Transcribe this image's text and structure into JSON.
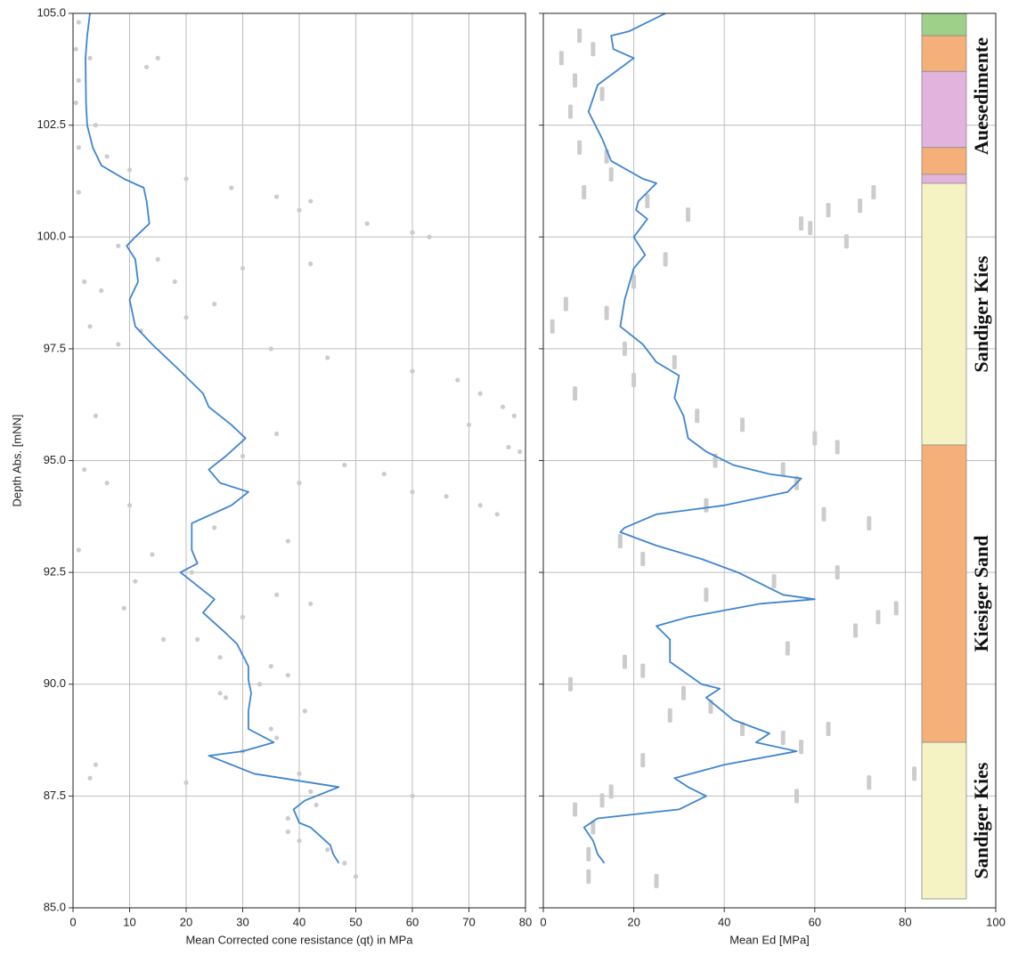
{
  "chart_data": [
    {
      "type": "line",
      "xlabel": "Mean Corrected cone resistance (qt) in MPa",
      "ylabel": "Depth Abs. [mNN]",
      "xlim": [
        0,
        80
      ],
      "xticks": [
        0,
        10,
        20,
        30,
        40,
        50,
        60,
        70,
        80
      ],
      "ylim": [
        85,
        105
      ],
      "yticks": [
        {
          "value": 85,
          "label": "85.0"
        },
        {
          "value": 87.5,
          "label": "87.5"
        },
        {
          "value": 90,
          "label": "90.0"
        },
        {
          "value": 92.5,
          "label": "92.5"
        },
        {
          "value": 95,
          "label": "95.0"
        },
        {
          "value": 97.5,
          "label": "97.5"
        },
        {
          "value": 100,
          "label": "100.0"
        },
        {
          "value": 102.5,
          "label": "102.5"
        },
        {
          "value": 105,
          "label": "105.0"
        }
      ],
      "grid": true,
      "series": [
        {
          "type": "scatter",
          "color": "#cccccc",
          "depth": [
            104.8,
            104.2,
            104.0,
            103.8,
            104.0,
            103.5,
            103.0,
            102.5,
            102.0,
            101.8,
            101.5,
            101.3,
            101.1,
            100.9,
            100.8,
            100.6,
            100.3,
            100.1,
            100.0,
            99.8,
            99.5,
            99.4,
            99.3,
            99.0,
            98.8,
            98.5,
            98.2,
            97.9,
            97.6,
            97.5,
            97.3,
            97.0,
            96.8,
            96.5,
            96.2,
            96.0,
            95.8,
            95.3,
            95.2,
            95.6,
            95.1,
            94.9,
            94.7,
            94.5,
            94.3,
            94.2,
            94.0,
            93.8,
            94.5,
            94.0,
            93.5,
            93.2,
            92.9,
            92.5,
            92.3,
            92.0,
            91.8,
            91.7,
            91.5,
            91.0,
            90.6,
            90.4,
            90.2,
            90.0,
            89.7,
            89.4,
            89.0,
            88.8,
            88.5,
            88.2,
            88.0,
            87.9,
            87.8,
            87.6,
            87.5,
            87.3,
            87.0,
            86.7,
            86.5,
            86.3,
            86.0,
            85.7,
            98.0,
            96.0,
            94.8,
            93.0,
            91.0,
            89.8,
            99.0,
            101.0
          ],
          "values": [
            1,
            0.5,
            3,
            13,
            15,
            1,
            0.5,
            4,
            1,
            6,
            10,
            20,
            28,
            36,
            42,
            40,
            52,
            60,
            63,
            8,
            15,
            42,
            30,
            18,
            5,
            25,
            20,
            12,
            8,
            35,
            45,
            60,
            68,
            72,
            76,
            78,
            70,
            77,
            79,
            36,
            30,
            48,
            55,
            40,
            60,
            66,
            72,
            75,
            6,
            10,
            25,
            38,
            14,
            21,
            11,
            36,
            42,
            9,
            30,
            22,
            26,
            35,
            38,
            33,
            27,
            41,
            35,
            36,
            30,
            4,
            40,
            3,
            20,
            42,
            60,
            43,
            38,
            38,
            40,
            45,
            48,
            50,
            3,
            4,
            2,
            1,
            16,
            26,
            2,
            1
          ]
        },
        {
          "type": "line",
          "color": "#3f85d0",
          "depth": [
            105.0,
            104.5,
            104.0,
            103.0,
            102.5,
            102.0,
            101.6,
            101.3,
            101.1,
            100.8,
            100.3,
            100.0,
            99.8,
            99.5,
            99.0,
            98.6,
            98.0,
            97.6,
            97.0,
            96.5,
            96.2,
            95.8,
            95.5,
            95.1,
            94.8,
            94.5,
            94.3,
            94.0,
            93.6,
            93.0,
            92.7,
            92.5,
            92.1,
            91.9,
            91.6,
            91.2,
            90.9,
            90.4,
            90.1,
            89.8,
            89.4,
            89.0,
            88.7,
            88.5,
            88.4,
            88.0,
            87.7,
            87.4,
            87.2,
            86.9,
            86.8,
            86.4,
            86.2,
            86.0
          ],
          "values": [
            3,
            2.5,
            2.2,
            2.3,
            2.5,
            3.5,
            5,
            9,
            12.5,
            13,
            13.5,
            11,
            9.5,
            11,
            11.5,
            10,
            11,
            14,
            19,
            23,
            24,
            28,
            30.5,
            27,
            24,
            26,
            31,
            28,
            21,
            21,
            22,
            19,
            23,
            25,
            23,
            26.5,
            29,
            31,
            31,
            31.5,
            31,
            31,
            35.5,
            30,
            24,
            32,
            47,
            41,
            39,
            40,
            42,
            45.5,
            46,
            47
          ]
        }
      ]
    },
    {
      "type": "line",
      "xlabel": "Mean Ed [MPa]",
      "xlim": [
        0,
        100
      ],
      "xticks": [
        0,
        20,
        40,
        60,
        80,
        100
      ],
      "ylim": [
        85,
        105
      ],
      "yticks": [
        85,
        87.5,
        90,
        92.5,
        95,
        97.5,
        100,
        102.5,
        105
      ],
      "grid": true,
      "series": [
        {
          "type": "dash",
          "color": "#cccccc",
          "depth": [
            104.0,
            103.5,
            104.5,
            104.2,
            103.2,
            102.8,
            102.0,
            101.8,
            101.4,
            101.0,
            100.8,
            100.5,
            100.3,
            100.6,
            100.7,
            101.0,
            100.2,
            99.9,
            99.5,
            99.0,
            98.5,
            98.0,
            98.3,
            97.5,
            97.2,
            96.8,
            96.5,
            96.0,
            95.8,
            95.5,
            95.3,
            95.0,
            94.8,
            94.5,
            94.0,
            93.8,
            93.6,
            93.2,
            92.8,
            92.5,
            92.3,
            92.0,
            91.7,
            91.5,
            91.2,
            90.8,
            90.5,
            90.3,
            90.0,
            89.8,
            89.5,
            89.3,
            89.0,
            88.8,
            88.6,
            88.3,
            88.0,
            87.8,
            87.6,
            87.4,
            87.2,
            86.8,
            86.2,
            85.7,
            85.6,
            87.5,
            89.0
          ],
          "values": [
            4,
            7,
            8,
            11,
            13,
            6,
            8,
            14,
            15,
            9,
            23,
            32,
            57,
            63,
            70,
            73,
            59,
            67,
            27,
            20,
            5,
            2,
            14,
            18,
            29,
            20,
            7,
            34,
            44,
            60,
            65,
            38,
            53,
            56,
            36,
            62,
            72,
            17,
            22,
            65,
            51,
            36,
            78,
            74,
            69,
            54,
            18,
            22,
            6,
            31,
            37,
            28,
            44,
            53,
            57,
            22,
            82,
            72,
            15,
            13,
            7,
            11,
            10,
            10,
            25,
            56,
            63
          ]
        },
        {
          "type": "line",
          "color": "#3f85d0",
          "depth": [
            105.0,
            104.6,
            104.5,
            104.2,
            104.0,
            103.4,
            102.8,
            102.2,
            101.7,
            101.3,
            101.2,
            100.8,
            100.6,
            100.4,
            100.0,
            99.6,
            99.3,
            98.6,
            98.0,
            97.6,
            97.2,
            96.9,
            96.4,
            96.0,
            95.5,
            95.2,
            94.9,
            94.7,
            94.6,
            94.3,
            94.0,
            93.8,
            93.5,
            93.4,
            93.1,
            92.8,
            92.5,
            92.2,
            92.0,
            91.9,
            91.8,
            91.5,
            91.3,
            91.0,
            90.5,
            90.0,
            89.9,
            89.7,
            89.2,
            88.9,
            88.7,
            88.5,
            88.2,
            87.9,
            87.7,
            87.5,
            87.2,
            87.0,
            86.8,
            86.5,
            86.2,
            86.0
          ],
          "values": [
            27,
            19,
            15,
            15.5,
            20,
            12,
            10,
            13,
            15,
            22,
            25,
            21,
            20.5,
            23,
            20,
            22.5,
            20,
            18,
            17,
            22,
            25,
            30,
            29,
            31,
            32,
            36,
            42,
            50,
            57,
            54,
            40,
            25,
            18,
            17,
            25,
            35,
            43,
            49,
            53,
            60,
            48,
            32,
            25,
            28,
            28,
            35,
            39,
            36,
            42,
            50,
            47,
            56,
            40,
            29,
            32,
            36,
            30,
            12,
            9,
            11,
            12,
            13.5
          ]
        }
      ],
      "column": {
        "layers": [
          {
            "top": 105,
            "bottom": 104.5,
            "color": "#9fd08a"
          },
          {
            "top": 104.5,
            "bottom": 103.7,
            "color": "#f5b07a"
          },
          {
            "top": 103.7,
            "bottom": 102.0,
            "color": "#e2b3dd"
          },
          {
            "top": 102.0,
            "bottom": 101.4,
            "color": "#f5b07a"
          },
          {
            "top": 101.4,
            "bottom": 101.2,
            "color": "#e2b3dd"
          },
          {
            "top": 101.2,
            "bottom": 95.35,
            "color": "#f5f3c4"
          },
          {
            "top": 95.35,
            "bottom": 88.7,
            "color": "#f5b07a"
          },
          {
            "top": 88.7,
            "bottom": 85.2,
            "color": "#f5f3c4"
          }
        ],
        "labels": [
          {
            "text": "Auesedimente",
            "top": 105,
            "bottom": 101.3
          },
          {
            "text": "Sandiger Kies",
            "top": 101.2,
            "bottom": 95.35
          },
          {
            "text": "Kiesiger Sand",
            "top": 95.35,
            "bottom": 88.7
          },
          {
            "text": "Sandiger Kies",
            "top": 88.7,
            "bottom": 85.2
          }
        ]
      }
    }
  ]
}
